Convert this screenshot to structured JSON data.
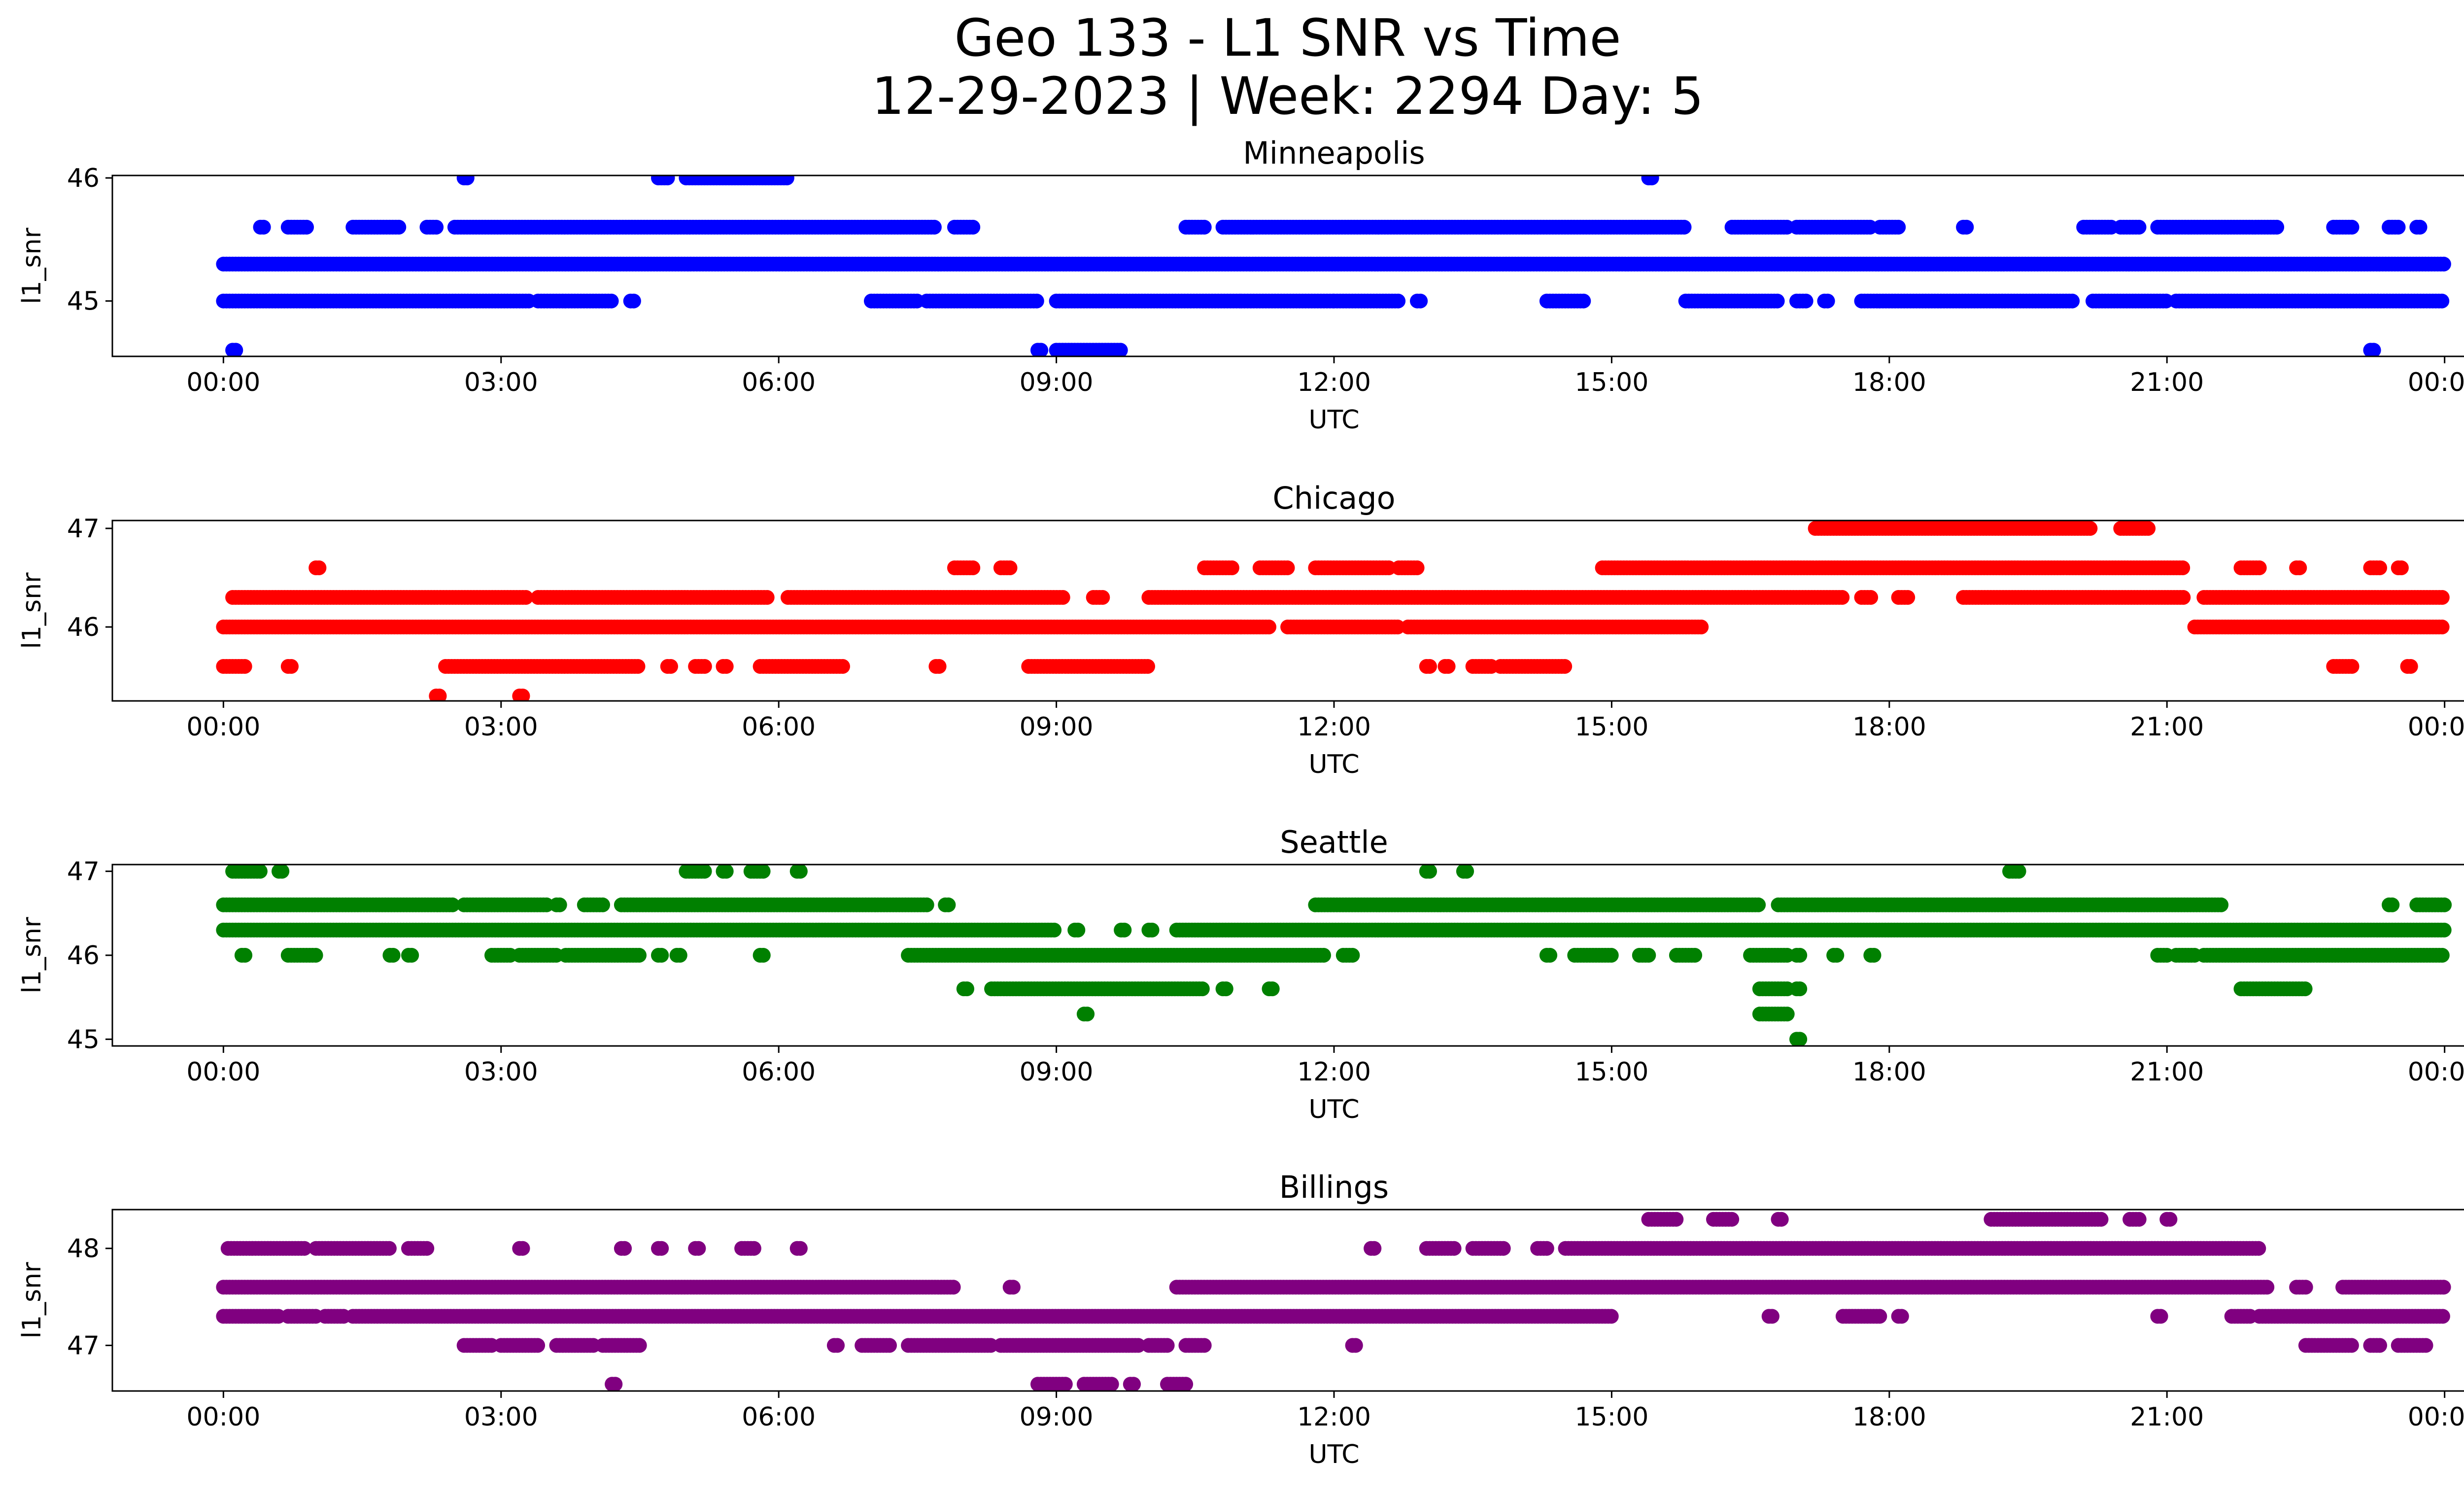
{
  "figure": {
    "title_line1": "Geo 133 - L1 SNR vs Time",
    "title_line2": "12-29-2023 | Week: 2294 Day: 5"
  },
  "chart_data": [
    {
      "type": "scatter",
      "title": "Minneapolis",
      "xlabel": "UTC",
      "ylabel": "l1_snr",
      "color": "#0000ff",
      "x_unit": "hours UTC",
      "xlim": [
        -1.2,
        25.2
      ],
      "ylim": [
        44.55,
        46.02
      ],
      "x_ticks": [
        0,
        3,
        6,
        9,
        12,
        15,
        18,
        21,
        24
      ],
      "x_tick_labels": [
        "00:00",
        "03:00",
        "06:00",
        "09:00",
        "12:00",
        "15:00",
        "18:00",
        "21:00",
        "00:00"
      ],
      "y_ticks": [
        45,
        46
      ],
      "y_tick_labels": [
        "45",
        "46"
      ],
      "series": [
        {
          "y": 45.3,
          "segments": [
            [
              0.0,
              24.0
            ]
          ]
        },
        {
          "y": 45.0,
          "segments": [
            [
              0.0,
              3.3
            ],
            [
              3.4,
              4.2
            ],
            [
              4.4,
              4.45
            ],
            [
              7.0,
              7.5
            ],
            [
              7.6,
              8.8
            ],
            [
              9.0,
              11.0
            ],
            [
              11.0,
              12.0
            ],
            [
              12.0,
              12.7
            ],
            [
              12.9,
              12.95
            ],
            [
              14.3,
              14.7
            ],
            [
              15.8,
              16.8
            ],
            [
              17.0,
              17.1
            ],
            [
              17.3,
              17.35
            ],
            [
              17.7,
              20.0
            ],
            [
              20.2,
              21.0
            ],
            [
              21.1,
              24.0
            ]
          ]
        },
        {
          "y": 45.6,
          "segments": [
            [
              0.4,
              0.45
            ],
            [
              0.7,
              0.9
            ],
            [
              1.4,
              1.9
            ],
            [
              2.2,
              2.3
            ],
            [
              2.5,
              7.7
            ],
            [
              7.9,
              8.1
            ],
            [
              10.4,
              10.6
            ],
            [
              10.8,
              15.8
            ],
            [
              16.3,
              16.9
            ],
            [
              17.0,
              17.8
            ],
            [
              17.9,
              18.1
            ],
            [
              18.8,
              18.85
            ],
            [
              20.1,
              20.4
            ],
            [
              20.5,
              20.7
            ],
            [
              20.9,
              22.2
            ],
            [
              22.8,
              23.0
            ],
            [
              23.4,
              23.5
            ],
            [
              23.7,
              23.75
            ]
          ]
        },
        {
          "y": 46.0,
          "segments": [
            [
              2.6,
              2.65
            ],
            [
              4.7,
              4.8
            ],
            [
              5.0,
              6.1
            ],
            [
              15.4,
              15.45
            ]
          ]
        },
        {
          "y": 44.6,
          "segments": [
            [
              0.1,
              0.15
            ],
            [
              8.8,
              8.85
            ],
            [
              9.0,
              9.7
            ],
            [
              23.2,
              23.25
            ]
          ]
        }
      ]
    },
    {
      "type": "scatter",
      "title": "Chicago",
      "xlabel": "UTC",
      "ylabel": "l1_snr",
      "color": "#ff0000",
      "x_unit": "hours UTC",
      "xlim": [
        -1.2,
        25.2
      ],
      "ylim": [
        45.25,
        47.08
      ],
      "x_ticks": [
        0,
        3,
        6,
        9,
        12,
        15,
        18,
        21,
        24
      ],
      "x_tick_labels": [
        "00:00",
        "03:00",
        "06:00",
        "09:00",
        "12:00",
        "15:00",
        "18:00",
        "21:00",
        "00:00"
      ],
      "y_ticks": [
        46,
        47
      ],
      "y_tick_labels": [
        "46",
        "47"
      ],
      "series": [
        {
          "y": 46.0,
          "segments": [
            [
              0.0,
              11.0
            ],
            [
              11.0,
              11.3
            ],
            [
              11.5,
              12.7
            ],
            [
              12.8,
              16.0
            ],
            [
              21.3,
              24.0
            ]
          ]
        },
        {
          "y": 46.3,
          "segments": [
            [
              0.1,
              3.3
            ],
            [
              3.4,
              5.9
            ],
            [
              6.1,
              9.1
            ],
            [
              9.4,
              9.5
            ],
            [
              10.0,
              17.5
            ],
            [
              17.7,
              17.8
            ],
            [
              18.1,
              18.2
            ],
            [
              18.8,
              21.2
            ],
            [
              21.4,
              24.0
            ]
          ]
        },
        {
          "y": 46.6,
          "segments": [
            [
              1.0,
              1.05
            ],
            [
              7.9,
              8.1
            ],
            [
              8.4,
              8.5
            ],
            [
              10.6,
              10.9
            ],
            [
              11.2,
              11.5
            ],
            [
              11.8,
              12.6
            ],
            [
              12.7,
              12.9
            ],
            [
              14.9,
              21.2
            ],
            [
              21.8,
              22.0
            ],
            [
              22.4,
              22.45
            ],
            [
              23.2,
              23.3
            ],
            [
              23.5,
              23.55
            ]
          ]
        },
        {
          "y": 47.0,
          "segments": [
            [
              17.2,
              20.2
            ],
            [
              20.5,
              20.8
            ]
          ]
        },
        {
          "y": 45.6,
          "segments": [
            [
              0.0,
              0.25
            ],
            [
              0.7,
              0.75
            ],
            [
              2.4,
              4.5
            ],
            [
              4.8,
              4.85
            ],
            [
              5.1,
              5.2
            ],
            [
              5.4,
              5.45
            ],
            [
              5.8,
              6.7
            ],
            [
              7.7,
              7.75
            ],
            [
              8.7,
              10.0
            ],
            [
              13.0,
              13.05
            ],
            [
              13.2,
              13.25
            ],
            [
              13.5,
              13.7
            ],
            [
              13.8,
              14.5
            ],
            [
              22.8,
              23.0
            ],
            [
              23.6,
              23.65
            ]
          ]
        },
        {
          "y": 45.3,
          "segments": [
            [
              2.3,
              2.35
            ],
            [
              3.2,
              3.25
            ]
          ]
        }
      ]
    },
    {
      "type": "scatter",
      "title": "Seattle",
      "xlabel": "UTC",
      "ylabel": "l1_snr",
      "color": "#008000",
      "x_unit": "hours UTC",
      "xlim": [
        -1.2,
        25.2
      ],
      "ylim": [
        44.92,
        47.08
      ],
      "x_ticks": [
        0,
        3,
        6,
        9,
        12,
        15,
        18,
        21,
        24
      ],
      "x_tick_labels": [
        "00:00",
        "03:00",
        "06:00",
        "09:00",
        "12:00",
        "15:00",
        "18:00",
        "21:00",
        "00:00"
      ],
      "y_ticks": [
        45,
        46,
        47
      ],
      "y_tick_labels": [
        "45",
        "46",
        "47"
      ],
      "series": [
        {
          "y": 46.3,
          "segments": [
            [
              0.0,
              9.0
            ],
            [
              9.2,
              9.25
            ],
            [
              9.7,
              9.75
            ],
            [
              10.0,
              10.05
            ],
            [
              10.3,
              24.0
            ]
          ]
        },
        {
          "y": 46.6,
          "segments": [
            [
              0.0,
              2.5
            ],
            [
              2.6,
              3.5
            ],
            [
              3.6,
              3.65
            ],
            [
              3.9,
              4.1
            ],
            [
              4.3,
              7.6
            ],
            [
              7.8,
              7.85
            ],
            [
              11.8,
              16.6
            ],
            [
              16.8,
              21.6
            ],
            [
              23.4,
              23.45
            ],
            [
              23.7,
              24.0
            ]
          ]
        },
        {
          "y": 46.0,
          "segments": [
            [
              0.2,
              0.25
            ],
            [
              0.7,
              1.0
            ],
            [
              1.8,
              1.85
            ],
            [
              2.0,
              2.05
            ],
            [
              2.9,
              3.1
            ],
            [
              3.2,
              3.6
            ],
            [
              3.7,
              4.5
            ],
            [
              4.7,
              4.75
            ],
            [
              4.9,
              4.95
            ],
            [
              5.8,
              5.85
            ],
            [
              7.4,
              11.9
            ],
            [
              12.1,
              12.2
            ],
            [
              14.3,
              14.35
            ],
            [
              14.6,
              15.0
            ],
            [
              15.3,
              15.4
            ],
            [
              15.7,
              15.9
            ],
            [
              16.5,
              16.9
            ],
            [
              17.0,
              17.05
            ],
            [
              17.4,
              17.45
            ],
            [
              17.8,
              17.85
            ],
            [
              20.9,
              21.0
            ],
            [
              21.1,
              21.3
            ],
            [
              21.4,
              24.0
            ]
          ]
        },
        {
          "y": 47.0,
          "segments": [
            [
              0.1,
              0.4
            ],
            [
              0.6,
              0.65
            ],
            [
              5.0,
              5.2
            ],
            [
              5.4,
              5.45
            ],
            [
              5.7,
              5.85
            ],
            [
              6.2,
              6.25
            ],
            [
              13.0,
              13.05
            ],
            [
              13.4,
              13.45
            ],
            [
              19.3,
              19.4
            ]
          ]
        },
        {
          "y": 45.6,
          "segments": [
            [
              8.0,
              8.05
            ],
            [
              8.3,
              10.6
            ],
            [
              10.8,
              10.85
            ],
            [
              11.3,
              11.35
            ],
            [
              16.6,
              16.9
            ],
            [
              17.0,
              17.05
            ],
            [
              21.8,
              22.5
            ]
          ]
        },
        {
          "y": 45.3,
          "segments": [
            [
              9.3,
              9.35
            ],
            [
              16.6,
              16.9
            ]
          ]
        },
        {
          "y": 45.0,
          "segments": [
            [
              17.0,
              17.05
            ]
          ]
        }
      ]
    },
    {
      "type": "scatter",
      "title": "Billings",
      "xlabel": "UTC",
      "ylabel": "l1_snr",
      "color": "#800080",
      "x_unit": "hours UTC",
      "xlim": [
        -1.2,
        25.2
      ],
      "ylim": [
        46.53,
        48.4
      ],
      "x_ticks": [
        0,
        3,
        6,
        9,
        12,
        15,
        18,
        21,
        24
      ],
      "x_tick_labels": [
        "00:00",
        "03:00",
        "06:00",
        "09:00",
        "12:00",
        "15:00",
        "18:00",
        "21:00",
        "00:00"
      ],
      "y_ticks": [
        47,
        48
      ],
      "y_tick_labels": [
        "47",
        "48"
      ],
      "series": [
        {
          "y": 47.6,
          "segments": [
            [
              0.0,
              7.9
            ],
            [
              8.5,
              8.55
            ],
            [
              10.3,
              22.1
            ],
            [
              22.4,
              22.5
            ],
            [
              22.9,
              24.0
            ]
          ]
        },
        {
          "y": 47.3,
          "segments": [
            [
              0.0,
              0.6
            ],
            [
              0.7,
              1.0
            ],
            [
              1.1,
              1.3
            ],
            [
              1.4,
              15.0
            ],
            [
              16.7,
              16.75
            ],
            [
              17.5,
              17.9
            ],
            [
              18.1,
              18.15
            ],
            [
              20.9,
              20.95
            ],
            [
              21.7,
              21.9
            ],
            [
              22.0,
              24.0
            ]
          ]
        },
        {
          "y": 48.0,
          "segments": [
            [
              0.05,
              0.9
            ],
            [
              1.0,
              1.8
            ],
            [
              2.0,
              2.2
            ],
            [
              3.2,
              3.25
            ],
            [
              4.3,
              4.35
            ],
            [
              4.7,
              4.75
            ],
            [
              5.1,
              5.15
            ],
            [
              5.6,
              5.75
            ],
            [
              6.2,
              6.25
            ],
            [
              12.4,
              12.45
            ],
            [
              13.0,
              13.3
            ],
            [
              13.5,
              13.85
            ],
            [
              14.2,
              14.3
            ],
            [
              14.5,
              22.0
            ]
          ]
        },
        {
          "y": 47.0,
          "segments": [
            [
              2.6,
              2.9
            ],
            [
              3.0,
              3.4
            ],
            [
              3.6,
              4.0
            ],
            [
              4.1,
              4.5
            ],
            [
              6.6,
              6.65
            ],
            [
              6.9,
              7.2
            ],
            [
              7.4,
              8.3
            ],
            [
              8.4,
              9.9
            ],
            [
              10.0,
              10.2
            ],
            [
              10.4,
              10.6
            ],
            [
              12.2,
              12.25
            ],
            [
              22.5,
              23.0
            ],
            [
              23.2,
              23.3
            ],
            [
              23.5,
              23.8
            ]
          ]
        },
        {
          "y": 48.3,
          "segments": [
            [
              15.4,
              15.7
            ],
            [
              16.1,
              16.3
            ],
            [
              16.8,
              16.85
            ],
            [
              19.1,
              20.3
            ],
            [
              20.6,
              20.7
            ],
            [
              21.0,
              21.05
            ]
          ]
        },
        {
          "y": 46.6,
          "segments": [
            [
              4.2,
              4.25
            ],
            [
              8.8,
              9.1
            ],
            [
              9.3,
              9.6
            ],
            [
              9.8,
              9.85
            ],
            [
              10.2,
              10.4
            ]
          ]
        }
      ]
    }
  ]
}
